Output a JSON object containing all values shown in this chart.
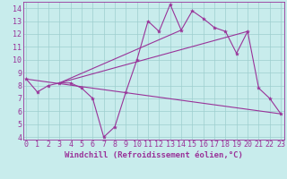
{
  "xlabel": "Windchill (Refroidissement éolien,°C)",
  "ylabel": "",
  "bg_color": "#c8ecec",
  "grid_color": "#9ecece",
  "line_color": "#993399",
  "xticks": [
    0,
    1,
    2,
    3,
    4,
    5,
    6,
    7,
    8,
    9,
    10,
    11,
    12,
    13,
    14,
    15,
    16,
    17,
    18,
    19,
    20,
    21,
    22,
    23
  ],
  "yticks": [
    4,
    5,
    6,
    7,
    8,
    9,
    10,
    11,
    12,
    13,
    14
  ],
  "line1_x": [
    0,
    1,
    2,
    3,
    4,
    5,
    6,
    7,
    8,
    9,
    10,
    11,
    12,
    13,
    14,
    15,
    16,
    17,
    18,
    19,
    20,
    21,
    22,
    23
  ],
  "line1_y": [
    8.5,
    7.5,
    8.0,
    8.2,
    8.2,
    7.8,
    7.0,
    4.0,
    4.8,
    7.5,
    10.0,
    13.0,
    12.2,
    14.3,
    12.3,
    13.8,
    13.2,
    12.5,
    12.2,
    10.5,
    12.2,
    7.8,
    7.0,
    5.8
  ],
  "line2_x": [
    0,
    23
  ],
  "line2_y": [
    8.5,
    5.8
  ],
  "line3_x": [
    3,
    20
  ],
  "line3_y": [
    8.2,
    12.2
  ],
  "line4_x": [
    3,
    14
  ],
  "line4_y": [
    8.2,
    12.3
  ],
  "font_size_label": 6.5,
  "font_size_tick": 6.0
}
